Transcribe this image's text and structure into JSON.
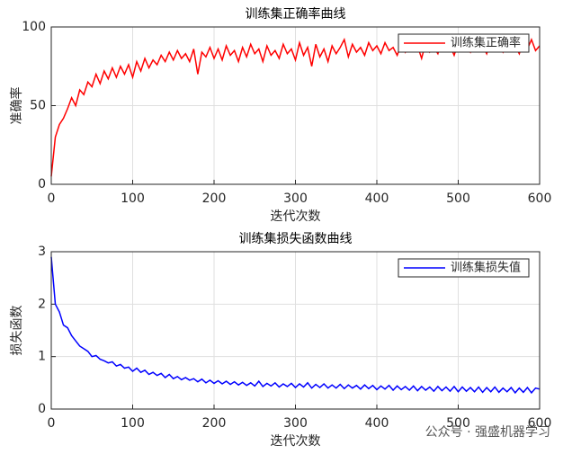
{
  "chart_data": [
    {
      "type": "line",
      "title": "训练集正确率曲线",
      "x_label": "迭代次数",
      "y_label": "准确率",
      "x": [
        0,
        5,
        10,
        15,
        20,
        25,
        30,
        35,
        40,
        45,
        50,
        55,
        60,
        65,
        70,
        75,
        80,
        85,
        90,
        95,
        100,
        105,
        110,
        115,
        120,
        125,
        130,
        135,
        140,
        145,
        150,
        155,
        160,
        165,
        170,
        175,
        180,
        185,
        190,
        195,
        200,
        205,
        210,
        215,
        220,
        225,
        230,
        235,
        240,
        245,
        250,
        255,
        260,
        265,
        270,
        275,
        280,
        285,
        290,
        295,
        300,
        305,
        310,
        315,
        320,
        325,
        330,
        335,
        340,
        345,
        350,
        355,
        360,
        365,
        370,
        375,
        380,
        385,
        390,
        395,
        400,
        405,
        410,
        415,
        420,
        425,
        430,
        435,
        440,
        445,
        450,
        455,
        460,
        465,
        470,
        475,
        480,
        485,
        490,
        495,
        500,
        505,
        510,
        515,
        520,
        525,
        530,
        535,
        540,
        545,
        550,
        555,
        560,
        565,
        570,
        575,
        580,
        585,
        590,
        595,
        600
      ],
      "series": [
        {
          "name": "训练集正确率",
          "color": "#ff0000",
          "values": [
            5,
            30,
            38,
            42,
            48,
            55,
            50,
            60,
            57,
            65,
            62,
            70,
            64,
            72,
            67,
            74,
            68,
            75,
            70,
            76,
            68,
            78,
            72,
            80,
            74,
            79,
            76,
            82,
            78,
            84,
            79,
            85,
            80,
            83,
            78,
            86,
            70,
            84,
            81,
            87,
            80,
            86,
            79,
            88,
            82,
            85,
            78,
            87,
            81,
            89,
            83,
            86,
            78,
            88,
            82,
            85,
            80,
            89,
            83,
            86,
            79,
            90,
            82,
            87,
            75,
            89,
            81,
            86,
            78,
            88,
            83,
            87,
            92,
            81,
            89,
            84,
            87,
            82,
            90,
            85,
            88,
            83,
            90,
            85,
            87,
            82,
            89,
            84,
            91,
            85,
            88,
            80,
            90,
            84,
            87,
            83,
            91,
            85,
            88,
            82,
            90,
            86,
            89,
            84,
            90,
            85,
            88,
            83,
            91,
            86,
            89,
            84,
            90,
            86,
            88,
            83,
            91,
            86,
            92,
            85,
            88
          ]
        }
      ],
      "xlim": [
        0,
        600
      ],
      "xticks": [
        0,
        100,
        200,
        300,
        400,
        500,
        600
      ],
      "ylim": [
        0,
        100
      ],
      "yticks": [
        0,
        50,
        100
      ],
      "grid": true,
      "legend": "upper right"
    },
    {
      "type": "line",
      "title": "训练集损失函数曲线",
      "x_label": "迭代次数",
      "y_label": "损失函数",
      "x": [
        0,
        5,
        10,
        15,
        20,
        25,
        30,
        35,
        40,
        45,
        50,
        55,
        60,
        65,
        70,
        75,
        80,
        85,
        90,
        95,
        100,
        105,
        110,
        115,
        120,
        125,
        130,
        135,
        140,
        145,
        150,
        155,
        160,
        165,
        170,
        175,
        180,
        185,
        190,
        195,
        200,
        205,
        210,
        215,
        220,
        225,
        230,
        235,
        240,
        245,
        250,
        255,
        260,
        265,
        270,
        275,
        280,
        285,
        290,
        295,
        300,
        305,
        310,
        315,
        320,
        325,
        330,
        335,
        340,
        345,
        350,
        355,
        360,
        365,
        370,
        375,
        380,
        385,
        390,
        395,
        400,
        405,
        410,
        415,
        420,
        425,
        430,
        435,
        440,
        445,
        450,
        455,
        460,
        465,
        470,
        475,
        480,
        485,
        490,
        495,
        500,
        505,
        510,
        515,
        520,
        525,
        530,
        535,
        540,
        545,
        550,
        555,
        560,
        565,
        570,
        575,
        580,
        585,
        590,
        595,
        600
      ],
      "series": [
        {
          "name": "训练集损失值",
          "color": "#0000ff",
          "values": [
            2.9,
            2.0,
            1.85,
            1.6,
            1.55,
            1.4,
            1.3,
            1.2,
            1.15,
            1.1,
            1.0,
            1.02,
            0.95,
            0.92,
            0.88,
            0.9,
            0.82,
            0.85,
            0.78,
            0.8,
            0.72,
            0.78,
            0.7,
            0.74,
            0.66,
            0.7,
            0.64,
            0.68,
            0.6,
            0.66,
            0.58,
            0.62,
            0.56,
            0.6,
            0.55,
            0.58,
            0.52,
            0.57,
            0.5,
            0.55,
            0.49,
            0.54,
            0.48,
            0.53,
            0.47,
            0.52,
            0.46,
            0.51,
            0.45,
            0.5,
            0.44,
            0.53,
            0.43,
            0.49,
            0.44,
            0.5,
            0.42,
            0.48,
            0.43,
            0.49,
            0.41,
            0.48,
            0.42,
            0.5,
            0.4,
            0.47,
            0.41,
            0.48,
            0.4,
            0.46,
            0.4,
            0.47,
            0.39,
            0.46,
            0.4,
            0.45,
            0.38,
            0.46,
            0.39,
            0.45,
            0.37,
            0.44,
            0.38,
            0.45,
            0.36,
            0.44,
            0.37,
            0.43,
            0.36,
            0.44,
            0.35,
            0.43,
            0.36,
            0.42,
            0.34,
            0.43,
            0.35,
            0.42,
            0.34,
            0.43,
            0.33,
            0.42,
            0.34,
            0.41,
            0.33,
            0.42,
            0.32,
            0.41,
            0.33,
            0.42,
            0.32,
            0.4,
            0.33,
            0.41,
            0.31,
            0.4,
            0.32,
            0.41,
            0.31,
            0.4,
            0.38
          ]
        }
      ],
      "xlim": [
        0,
        600
      ],
      "xticks": [
        0,
        100,
        200,
        300,
        400,
        500,
        600
      ],
      "ylim": [
        0,
        3
      ],
      "yticks": [
        0,
        1,
        2,
        3
      ],
      "grid": true,
      "legend": "upper right"
    }
  ],
  "watermark": "公众号 · 强盛机器学习"
}
